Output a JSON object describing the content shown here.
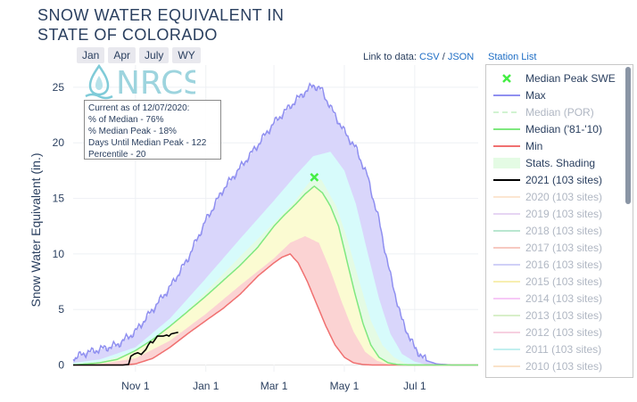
{
  "title_line1": "SNOW WATER EQUIVALENT IN",
  "title_line2": "STATE OF COLORADO",
  "range_buttons": [
    "Jan",
    "Apr",
    "July",
    "WY"
  ],
  "links": {
    "prefix": "Link to data:",
    "csv": "CSV",
    "sep": "/",
    "json": "JSON",
    "station_list": "Station List"
  },
  "logo_text": "NRCS",
  "info": {
    "line1": "Current as of 12/07/2020:",
    "line2": "% of Median - 76%",
    "line3": "% Median Peak - 18%",
    "line4": "Days Until Median Peak - 122",
    "line5": "Percentile - 20"
  },
  "colors": {
    "max": "#8f8ff0",
    "median": "#7fe87f",
    "min": "#f07070",
    "current": "#000000",
    "band_max": "#d9d6fb",
    "band_p90": "#d7fbfb",
    "band_p70": "#e4fbe4",
    "band_p50": "#fbfbd2",
    "band_p30": "#fbd3d3"
  },
  "legend": [
    {
      "label": "Median Peak SWE",
      "type": "marker",
      "color": "#44ee44",
      "faded": false
    },
    {
      "label": "Max",
      "type": "line",
      "color": "#8f8ff0",
      "faded": false
    },
    {
      "label": "Median (POR)",
      "type": "dash",
      "color": "#9be59b",
      "faded": true
    },
    {
      "label": "Median ('81-'10)",
      "type": "line",
      "color": "#7fe87f",
      "faded": false
    },
    {
      "label": "Min",
      "type": "line",
      "color": "#f07070",
      "faded": false
    },
    {
      "label": "Stats. Shading",
      "type": "fill",
      "color": "#e4fbe4",
      "faded": false
    },
    {
      "label": "2021 (103 sites)",
      "type": "line",
      "color": "#000000",
      "faded": false
    },
    {
      "label": "2020 (103 sites)",
      "type": "line",
      "color": "#f9c89a",
      "faded": true
    },
    {
      "label": "2019 (103 sites)",
      "type": "line",
      "color": "#c9a3e6",
      "faded": true
    },
    {
      "label": "2018 (103 sites)",
      "type": "line",
      "color": "#66cc99",
      "faded": true
    },
    {
      "label": "2017 (103 sites)",
      "type": "line",
      "color": "#ee8877",
      "faded": true
    },
    {
      "label": "2016 (103 sites)",
      "type": "line",
      "color": "#9999ee",
      "faded": true
    },
    {
      "label": "2015 (103 sites)",
      "type": "line",
      "color": "#eedd55",
      "faded": true
    },
    {
      "label": "2014 (103 sites)",
      "type": "line",
      "color": "#ee88ee",
      "faded": true
    },
    {
      "label": "2013 (103 sites)",
      "type": "line",
      "color": "#aadd88",
      "faded": true
    },
    {
      "label": "2012 (103 sites)",
      "type": "line",
      "color": "#ee99bb",
      "faded": true
    },
    {
      "label": "2011 (103 sites)",
      "type": "line",
      "color": "#77dddd",
      "faded": true
    },
    {
      "label": "2010 (103 sites)",
      "type": "line",
      "color": "#f5c08a",
      "faded": true
    }
  ],
  "chart_data": {
    "type": "area",
    "title": "SNOW WATER EQUIVALENT IN STATE OF COLORADO",
    "ylabel": "Snow Water Equivalent (in.)",
    "xlabel": "",
    "x_unit": "day of water year (Oct 1 = 0)",
    "xlim": [
      -23,
      328
    ],
    "ylim": [
      -0.6,
      27
    ],
    "yticks": [
      0,
      5,
      10,
      15,
      20,
      25
    ],
    "xticks": [
      {
        "day": 31,
        "label": "Nov  1"
      },
      {
        "day": 92,
        "label": "Jan  1"
      },
      {
        "day": 151,
        "label": "Mar  1"
      },
      {
        "day": 212,
        "label": "May  1"
      },
      {
        "day": 273,
        "label": "Jul  1"
      }
    ],
    "series": [
      {
        "name": "Max",
        "points": [
          [
            -23,
            0.5
          ],
          [
            -15,
            1
          ],
          [
            0,
            1.4
          ],
          [
            15,
            1.8
          ],
          [
            31,
            3
          ],
          [
            46,
            5
          ],
          [
            61,
            7
          ],
          [
            76,
            9.5
          ],
          [
            92,
            13
          ],
          [
            107,
            15.8
          ],
          [
            122,
            17.8
          ],
          [
            137,
            19.8
          ],
          [
            151,
            21.8
          ],
          [
            166,
            23.4
          ],
          [
            176,
            24.4
          ],
          [
            185,
            25.2
          ],
          [
            192,
            24.8
          ],
          [
            200,
            23.2
          ],
          [
            212,
            21
          ],
          [
            222,
            19.5
          ],
          [
            232,
            17
          ],
          [
            242,
            13
          ],
          [
            252,
            8
          ],
          [
            262,
            4
          ],
          [
            273,
            1.5
          ],
          [
            283,
            0.4
          ],
          [
            292,
            0.1
          ],
          [
            305,
            0
          ],
          [
            328,
            0
          ]
        ]
      },
      {
        "name": "90th Percentile",
        "points": [
          [
            -23,
            0.2
          ],
          [
            0,
            0.5
          ],
          [
            31,
            1.6
          ],
          [
            61,
            4.2
          ],
          [
            92,
            7.8
          ],
          [
            122,
            11.4
          ],
          [
            151,
            14.8
          ],
          [
            170,
            17.1
          ],
          [
            185,
            18.8
          ],
          [
            200,
            19.2
          ],
          [
            212,
            17.5
          ],
          [
            222,
            14.5
          ],
          [
            232,
            10.2
          ],
          [
            242,
            6
          ],
          [
            252,
            2.8
          ],
          [
            262,
            1
          ],
          [
            273,
            0.3
          ],
          [
            283,
            0.05
          ],
          [
            295,
            0
          ],
          [
            328,
            0
          ]
        ]
      },
      {
        "name": "70th Percentile",
        "points": [
          [
            -23,
            0.1
          ],
          [
            0,
            0.3
          ],
          [
            31,
            1.2
          ],
          [
            61,
            3.4
          ],
          [
            92,
            6.6
          ],
          [
            122,
            9.8
          ],
          [
            151,
            12.8
          ],
          [
            168,
            14.6
          ],
          [
            182,
            16.5
          ],
          [
            192,
            16.7
          ],
          [
            205,
            14.3
          ],
          [
            215,
            11.2
          ],
          [
            225,
            7.5
          ],
          [
            235,
            4
          ],
          [
            245,
            1.8
          ],
          [
            255,
            0.7
          ],
          [
            265,
            0.15
          ],
          [
            278,
            0
          ],
          [
            328,
            0
          ]
        ]
      },
      {
        "name": "Median ('81-'10)",
        "points": [
          [
            -23,
            0
          ],
          [
            0,
            0.2
          ],
          [
            15,
            0.5
          ],
          [
            31,
            1.3
          ],
          [
            46,
            2.3
          ],
          [
            61,
            3.5
          ],
          [
            76,
            4.8
          ],
          [
            92,
            6.2
          ],
          [
            107,
            7.6
          ],
          [
            122,
            9
          ],
          [
            137,
            10.6
          ],
          [
            151,
            12.5
          ],
          [
            160,
            13.5
          ],
          [
            170,
            14.5
          ],
          [
            178,
            15.4
          ],
          [
            186,
            16.1
          ],
          [
            193,
            15.5
          ],
          [
            200,
            14.3
          ],
          [
            207,
            12.5
          ],
          [
            214,
            9.5
          ],
          [
            221,
            6.5
          ],
          [
            228,
            3.8
          ],
          [
            235,
            1.8
          ],
          [
            242,
            0.7
          ],
          [
            250,
            0.2
          ],
          [
            258,
            0.05
          ],
          [
            268,
            0
          ],
          [
            328,
            0
          ]
        ]
      },
      {
        "name": "30th Percentile",
        "points": [
          [
            -23,
            0
          ],
          [
            0,
            0.1
          ],
          [
            31,
            0.6
          ],
          [
            61,
            2.2
          ],
          [
            92,
            4.6
          ],
          [
            122,
            7.2
          ],
          [
            151,
            9.6
          ],
          [
            165,
            11
          ],
          [
            178,
            11.6
          ],
          [
            190,
            11
          ],
          [
            200,
            8.5
          ],
          [
            210,
            5.6
          ],
          [
            220,
            3
          ],
          [
            230,
            1.2
          ],
          [
            240,
            0.4
          ],
          [
            250,
            0.05
          ],
          [
            260,
            0
          ],
          [
            328,
            0
          ]
        ]
      },
      {
        "name": "Min",
        "points": [
          [
            -23,
            0
          ],
          [
            0,
            0
          ],
          [
            20,
            0
          ],
          [
            31,
            0.1
          ],
          [
            46,
            0.6
          ],
          [
            61,
            1.6
          ],
          [
            76,
            2.8
          ],
          [
            92,
            4
          ],
          [
            107,
            5.1
          ],
          [
            122,
            6.4
          ],
          [
            137,
            8
          ],
          [
            151,
            9.2
          ],
          [
            158,
            9.7
          ],
          [
            165,
            10
          ],
          [
            172,
            9.2
          ],
          [
            180,
            7.5
          ],
          [
            188,
            5.5
          ],
          [
            196,
            3.5
          ],
          [
            204,
            1.8
          ],
          [
            212,
            0.7
          ],
          [
            220,
            0.2
          ],
          [
            228,
            0.05
          ],
          [
            236,
            0
          ],
          [
            328,
            0
          ]
        ]
      },
      {
        "name": "2021 (103 sites)",
        "points": [
          [
            -23,
            0
          ],
          [
            0,
            0
          ],
          [
            20,
            0
          ],
          [
            25,
            0.05
          ],
          [
            27,
            0.8
          ],
          [
            30,
            1
          ],
          [
            33,
            1.1
          ],
          [
            36,
            0.95
          ],
          [
            40,
            1.4
          ],
          [
            42,
            1.8
          ],
          [
            44,
            2.1
          ],
          [
            46,
            2
          ],
          [
            48,
            2.3
          ],
          [
            50,
            2.6
          ],
          [
            55,
            2.6
          ],
          [
            58,
            2.7
          ],
          [
            60,
            2.6
          ],
          [
            62,
            2.8
          ],
          [
            66,
            2.9
          ],
          [
            68,
            2.95
          ]
        ]
      }
    ],
    "median_peak_swe": {
      "day": 186,
      "value": 16.9
    },
    "ymax_max": 25.2
  }
}
